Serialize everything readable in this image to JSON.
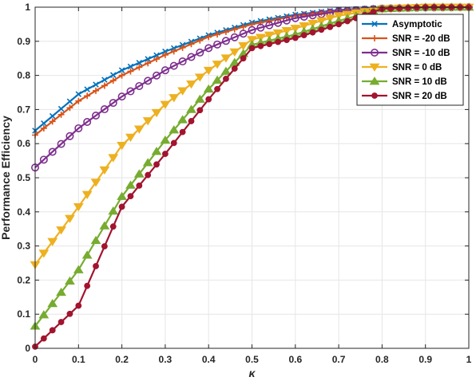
{
  "chart_data": {
    "type": "line",
    "xlabel": "κ",
    "ylabel": "Performance Efficiency",
    "xlim": [
      0,
      1
    ],
    "ylim": [
      0,
      1
    ],
    "xticks": [
      "0",
      "0.1",
      "0.2",
      "0.3",
      "0.4",
      "0.5",
      "0.6",
      "0.7",
      "0.8",
      "0.9",
      "1"
    ],
    "yticks": [
      "0",
      "0.1",
      "0.2",
      "0.3",
      "0.4",
      "0.5",
      "0.6",
      "0.7",
      "0.8",
      "0.9",
      "1"
    ],
    "grid": true,
    "legend_position": "top-right",
    "x": [
      0,
      0.1,
      0.2,
      0.3,
      0.4,
      0.5,
      0.6,
      0.7,
      0.8,
      0.9,
      1.0
    ],
    "series": [
      {
        "name": "Asymptotic",
        "color": "#0072BD",
        "marker": "x",
        "values": [
          0.638,
          0.745,
          0.815,
          0.87,
          0.918,
          0.955,
          0.978,
          0.992,
          0.998,
          1.0,
          1.0
        ]
      },
      {
        "name": "SNR = -20 dB",
        "color": "#D95319",
        "marker": "+",
        "values": [
          0.625,
          0.725,
          0.8,
          0.86,
          0.913,
          0.95,
          0.975,
          0.99,
          0.997,
          1.0,
          1.0
        ]
      },
      {
        "name": "SNR = -10 dB",
        "color": "#7E2F8E",
        "marker": "o",
        "values": [
          0.53,
          0.645,
          0.738,
          0.815,
          0.88,
          0.933,
          0.968,
          0.988,
          0.996,
          0.999,
          1.0
        ]
      },
      {
        "name": "SNR = 0 dB",
        "color": "#EDB120",
        "marker": "v",
        "values": [
          0.245,
          0.415,
          0.595,
          0.715,
          0.815,
          0.905,
          0.938,
          0.975,
          0.995,
          1.0,
          1.0
        ]
      },
      {
        "name": "SNR = 10 dB",
        "color": "#77AC30",
        "marker": "^",
        "values": [
          0.065,
          0.23,
          0.445,
          0.61,
          0.76,
          0.89,
          0.92,
          0.96,
          0.995,
          1.0,
          1.0
        ]
      },
      {
        "name": "SNR = 20 dB",
        "color": "#A2142F",
        "marker": "o-filled",
        "values": [
          0.005,
          0.125,
          0.415,
          0.57,
          0.73,
          0.88,
          0.91,
          0.95,
          0.995,
          1.0,
          1.0
        ]
      }
    ]
  }
}
